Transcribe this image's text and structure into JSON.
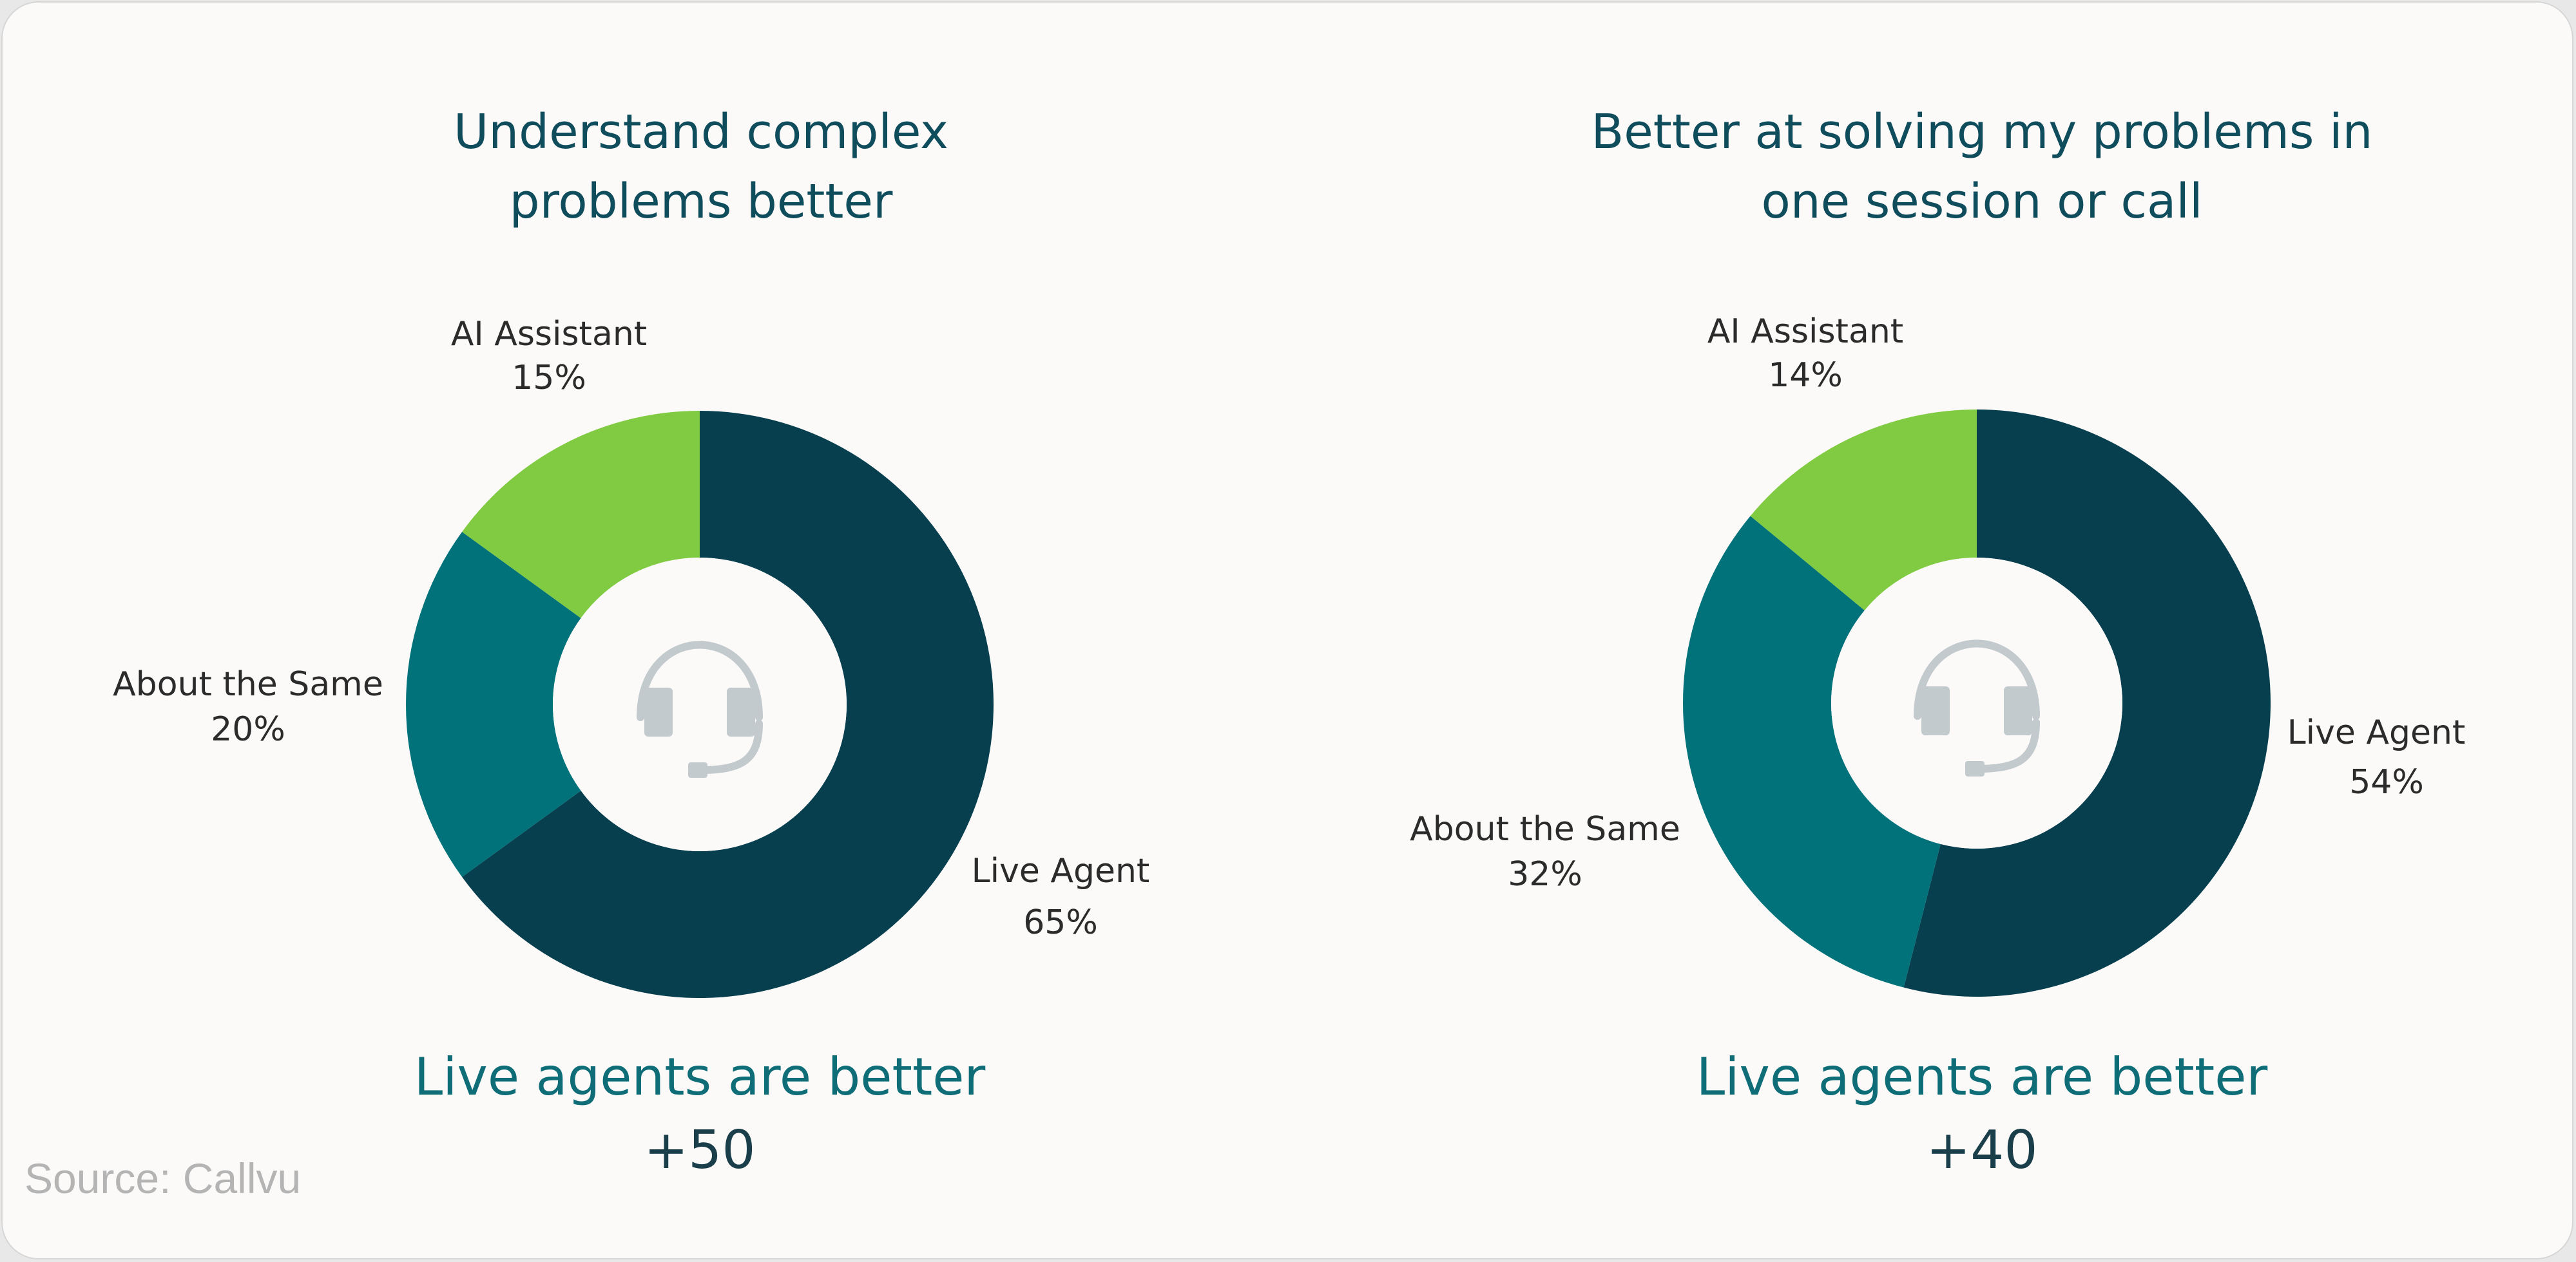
{
  "colors": {
    "live_agent": "#073f4f",
    "about_same": "#01727a",
    "ai_assistant": "#81cb43",
    "hole": "#fbfaf9",
    "icon": "#c3cacd"
  },
  "icons": {
    "center": "headset-icon"
  },
  "source": "Source: Callvu",
  "chart_data": [
    {
      "type": "pie",
      "variant": "donut",
      "title": [
        "Understand complex",
        "problems better"
      ],
      "slices": [
        {
          "key": "live_agent",
          "label": "Live Agent",
          "value": 65,
          "value_label": "65%"
        },
        {
          "key": "about_same",
          "label": "About the Same",
          "value": 20,
          "value_label": "20%"
        },
        {
          "key": "ai_assistant",
          "label": "AI Assistant",
          "value": 15,
          "value_label": "15%"
        }
      ],
      "start_angle": "12 o'clock",
      "direction": "clockwise",
      "verdict": "Live agents are better",
      "score": "+50"
    },
    {
      "type": "pie",
      "variant": "donut",
      "title": [
        "Better at solving my problems in",
        "one session or call"
      ],
      "slices": [
        {
          "key": "live_agent",
          "label": "Live Agent",
          "value": 54,
          "value_label": "54%"
        },
        {
          "key": "about_same",
          "label": "About the Same",
          "value": 32,
          "value_label": "32%"
        },
        {
          "key": "ai_assistant",
          "label": "AI Assistant",
          "value": 14,
          "value_label": "14%"
        }
      ],
      "start_angle": "12 o'clock",
      "direction": "clockwise",
      "verdict": "Live agents are better",
      "score": "+40"
    }
  ]
}
